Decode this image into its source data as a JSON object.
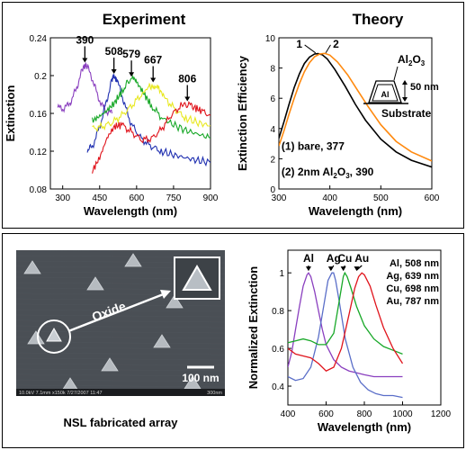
{
  "figure": {
    "top_panel": {
      "frame": "single"
    },
    "bottom_panel": {
      "frame": "single"
    }
  },
  "chart_data": [
    {
      "id": "experiment",
      "type": "line",
      "title": "Experiment",
      "xlabel": "Wavelength (nm)",
      "ylabel": "Extinction",
      "xlim": [
        250,
        900
      ],
      "ylim": [
        0.08,
        0.24
      ],
      "xticks": [
        300,
        450,
        600,
        750,
        900
      ],
      "yticks": [
        0.08,
        0.12,
        0.16,
        0.2,
        0.24
      ],
      "grid": false,
      "series": [
        {
          "color": "#8a3fbf",
          "x": [
            280,
            300,
            320,
            340,
            360,
            380,
            390,
            400,
            420,
            440,
            460,
            480,
            500
          ],
          "y": [
            0.166,
            0.165,
            0.168,
            0.176,
            0.19,
            0.206,
            0.211,
            0.209,
            0.197,
            0.18,
            0.168,
            0.162,
            0.16
          ]
        },
        {
          "color": "#1f2fb0",
          "x": [
            400,
            420,
            440,
            460,
            480,
            500,
            508,
            520,
            540,
            560,
            580,
            620,
            660,
            700,
            750,
            800,
            850,
            900
          ],
          "y": [
            0.12,
            0.125,
            0.138,
            0.155,
            0.175,
            0.196,
            0.199,
            0.195,
            0.18,
            0.162,
            0.148,
            0.133,
            0.125,
            0.12,
            0.116,
            0.113,
            0.11,
            0.108
          ]
        },
        {
          "color": "#18a828",
          "x": [
            420,
            450,
            480,
            510,
            540,
            560,
            579,
            600,
            630,
            660,
            700,
            750,
            800,
            850,
            900
          ],
          "y": [
            0.152,
            0.157,
            0.163,
            0.171,
            0.183,
            0.192,
            0.196,
            0.193,
            0.181,
            0.168,
            0.156,
            0.148,
            0.142,
            0.138,
            0.134
          ]
        },
        {
          "color": "#e8e820",
          "x": [
            420,
            460,
            500,
            540,
            580,
            620,
            650,
            667,
            690,
            720,
            760,
            800,
            850,
            900
          ],
          "y": [
            0.144,
            0.146,
            0.15,
            0.158,
            0.168,
            0.18,
            0.188,
            0.19,
            0.186,
            0.175,
            0.163,
            0.155,
            0.15,
            0.147
          ]
        },
        {
          "color": "#e0141c",
          "x": [
            420,
            450,
            480,
            510,
            540,
            580,
            620,
            660,
            700,
            740,
            780,
            806,
            830,
            860,
            900
          ],
          "y": [
            0.099,
            0.113,
            0.134,
            0.146,
            0.148,
            0.14,
            0.132,
            0.133,
            0.143,
            0.158,
            0.168,
            0.17,
            0.167,
            0.163,
            0.158
          ]
        }
      ],
      "annotations": [
        {
          "text": "390",
          "x": 390,
          "y": 0.211
        },
        {
          "text": "508",
          "x": 508,
          "y": 0.199
        },
        {
          "text": "579",
          "x": 579,
          "y": 0.196
        },
        {
          "text": "667",
          "x": 667,
          "y": 0.19
        },
        {
          "text": "806",
          "x": 806,
          "y": 0.17
        }
      ]
    },
    {
      "id": "theory",
      "type": "line",
      "title": "Theory",
      "xlabel": "Wavelength (nm)",
      "ylabel": "Extinction Efficiency",
      "xlim": [
        300,
        600
      ],
      "ylim": [
        0,
        10
      ],
      "xticks": [
        300,
        400,
        500,
        600
      ],
      "yticks": [
        0,
        2,
        4,
        6,
        8,
        10
      ],
      "grid": false,
      "series": [
        {
          "name": "1",
          "color": "#000000",
          "x": [
            300,
            310,
            320,
            330,
            340,
            350,
            360,
            370,
            377,
            385,
            395,
            410,
            430,
            450,
            470,
            500,
            530,
            560,
            600
          ],
          "y": [
            3.35,
            4.45,
            5.6,
            6.7,
            7.6,
            8.3,
            8.72,
            8.93,
            8.95,
            8.88,
            8.6,
            7.9,
            6.8,
            5.6,
            4.55,
            3.3,
            2.45,
            1.9,
            1.45
          ]
        },
        {
          "name": "2",
          "color": "#ff8a10",
          "x": [
            300,
            310,
            320,
            330,
            340,
            350,
            360,
            370,
            380,
            390,
            400,
            415,
            435,
            455,
            475,
            500,
            530,
            560,
            600
          ],
          "y": [
            2.85,
            3.85,
            4.95,
            6.0,
            6.95,
            7.75,
            8.35,
            8.75,
            8.93,
            8.97,
            8.85,
            8.4,
            7.55,
            6.5,
            5.45,
            4.25,
            3.15,
            2.45,
            1.85
          ]
        }
      ],
      "annotations": [
        {
          "text": "1",
          "x": 340,
          "y": 9.35
        },
        {
          "text": "2",
          "x": 412,
          "y": 9.35
        },
        {
          "text": "(1) bare, 377",
          "x": 305,
          "y": 2.6
        },
        {
          "text": "(2) 2nm Al",
          "sub": "2",
          "mid": "O",
          "sub2": "3",
          "tail": ", 390",
          "x": 305,
          "y": 0.9
        }
      ],
      "inset": {
        "label_top": "Al",
        "label_top_sub": "2",
        "label_top_mid": "O",
        "label_top_sub2": "3",
        "label_metal": "Al",
        "label_thickness": "50 nm",
        "label_substrate": "Substrate"
      }
    },
    {
      "id": "normalized",
      "type": "line",
      "xlabel": "Wavelength (nm)",
      "ylabel": "Normalized Extinction",
      "xlim": [
        400,
        1200
      ],
      "ylim": [
        0.3,
        1.12
      ],
      "xticks": [
        400,
        600,
        800,
        1000,
        1200
      ],
      "yticks": [
        0.4,
        0.6,
        0.8,
        1.0
      ],
      "grid": false,
      "series": [
        {
          "name": "Al, 508 nm",
          "color": "#8a3fbf",
          "x": [
            400,
            420,
            440,
            460,
            480,
            500,
            508,
            520,
            540,
            560,
            580,
            600,
            640,
            680,
            720,
            760,
            800,
            850,
            900,
            950,
            1000
          ],
          "y": [
            0.5,
            0.58,
            0.7,
            0.82,
            0.93,
            0.99,
            1.0,
            0.98,
            0.9,
            0.8,
            0.7,
            0.62,
            0.54,
            0.5,
            0.48,
            0.47,
            0.46,
            0.45,
            0.45,
            0.45,
            0.45
          ]
        },
        {
          "name": "Ag, 639 nm",
          "color": "#5a6ec8",
          "x": [
            400,
            440,
            480,
            520,
            560,
            590,
            610,
            630,
            639,
            650,
            670,
            700,
            740,
            780,
            820,
            860,
            900,
            950,
            1000
          ],
          "y": [
            0.45,
            0.43,
            0.44,
            0.5,
            0.66,
            0.84,
            0.96,
            1.0,
            1.0,
            0.96,
            0.84,
            0.65,
            0.5,
            0.42,
            0.38,
            0.36,
            0.35,
            0.35,
            0.34
          ]
        },
        {
          "name": "Cu, 698 nm",
          "color": "#18a828",
          "x": [
            400,
            440,
            480,
            520,
            560,
            600,
            640,
            670,
            690,
            698,
            710,
            730,
            760,
            800,
            850,
            900,
            950,
            1000
          ],
          "y": [
            0.63,
            0.64,
            0.65,
            0.64,
            0.62,
            0.62,
            0.68,
            0.86,
            0.98,
            1.0,
            0.98,
            0.92,
            0.82,
            0.72,
            0.65,
            0.61,
            0.59,
            0.57
          ]
        },
        {
          "name": "Au, 787 nm",
          "color": "#e0141c",
          "x": [
            400,
            440,
            480,
            520,
            560,
            600,
            640,
            680,
            720,
            750,
            770,
            787,
            800,
            830,
            860,
            900,
            950,
            1000
          ],
          "y": [
            0.6,
            0.57,
            0.56,
            0.55,
            0.52,
            0.48,
            0.5,
            0.6,
            0.78,
            0.92,
            0.98,
            1.0,
            0.99,
            0.93,
            0.83,
            0.71,
            0.6,
            0.52
          ]
        }
      ],
      "peak_labels": [
        {
          "text": "Al",
          "x": 508
        },
        {
          "text": "Ag",
          "x": 639
        },
        {
          "text": "Cu",
          "x": 698
        },
        {
          "text": "Au",
          "x": 787
        }
      ],
      "legend": [
        "Al,  508 nm",
        "Ag, 639 nm",
        "Cu, 698 nm",
        "Au, 787 nm"
      ]
    }
  ],
  "sem": {
    "oxide_label": "Oxide",
    "scale_bar_label": "100 nm",
    "footer_left": "10.0kV 7.1mm x150k 7/27/2007 11:47",
    "footer_right": "300nm",
    "caption": "NSL fabricated array",
    "colors": {
      "background": "#4a4f55",
      "particle": "#c9ced3",
      "highlight": "#ffffff"
    }
  }
}
